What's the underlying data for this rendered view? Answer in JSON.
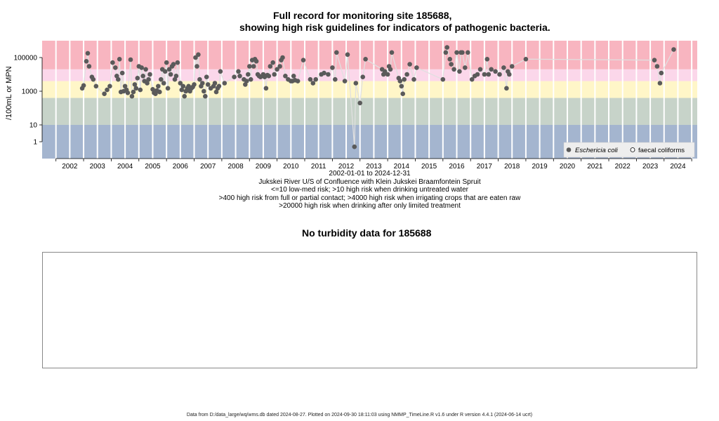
{
  "title_line1": "Full record for monitoring site 185688,",
  "title_line2": "showing high risk guidelines for indicators of pathogenic bacteria.",
  "y_axis_label": "/100mL or MPN",
  "caption": {
    "date_range": "2002-01-01 to 2024-12-31",
    "site_name": "Jukskei River U/S of Confluence with Klein Jukskei Braamfontein Spruit",
    "guideline_1": "<=10 low-med risk; >10 high risk when drinking untreated water",
    "guideline_2": ">400 high risk from full or partial contact; >4000 high risk when irrigating crops that are eaten raw",
    "guideline_3": ">20000 high risk when drinking after only limited treatment"
  },
  "legend": {
    "ecoli": "Eschericia coli",
    "faecal": "faecal coliforms"
  },
  "turbidity_title": "No turbidity data for 185688",
  "footer": "Data from D:/data_large/wq/wms.db dated 2024-08-27. Plotted on 2024-09-30 18:11:03 using NMMP_TimeLine.R v1.6 under R version 4.4.1 (2024-06-14 ucrt)",
  "colors": {
    "band_red": "#f8b5c0",
    "band_pink": "#fbd7ea",
    "band_yellow": "#fff6c8",
    "band_green": "#c7d3c9",
    "band_blue": "#a4b5cf",
    "points": "#5a5a5a",
    "line": "#e0e0e0"
  },
  "chart_data": {
    "type": "scatter",
    "y_scale": "log10",
    "ylim": [
      0.1,
      1000000
    ],
    "ytick_labels": [
      "1",
      "10",
      "1000",
      "100000"
    ],
    "ytick_values": [
      1,
      10,
      1000,
      100000
    ],
    "xlim": [
      2001.5,
      2025.2
    ],
    "xtick_labels": [
      "2002",
      "2003",
      "2004",
      "2005",
      "2006",
      "2007",
      "2008",
      "2009",
      "2010",
      "2011",
      "2012",
      "2013",
      "2014",
      "2015",
      "2016",
      "2017",
      "2018",
      "2019",
      "2020",
      "2021",
      "2022",
      "2023",
      "2024"
    ],
    "risk_bands": [
      {
        "from": 0.1,
        "to": 10
      },
      {
        "from": 10,
        "to": 400
      },
      {
        "from": 400,
        "to": 4000
      },
      {
        "from": 4000,
        "to": 20000
      },
      {
        "from": 20000,
        "to": 1000000
      }
    ],
    "legend_position": "bottom-right",
    "series": [
      {
        "name": "Eschericia coli",
        "marker": "filled-circle",
        "points": [
          [
            2002.95,
            1500
          ],
          [
            2003.0,
            2200
          ],
          [
            2003.1,
            60000
          ],
          [
            2003.15,
            180000
          ],
          [
            2003.2,
            30000
          ],
          [
            2003.3,
            7000
          ],
          [
            2003.35,
            5000
          ],
          [
            2003.45,
            2000
          ],
          [
            2003.75,
            700
          ],
          [
            2003.85,
            1200
          ],
          [
            2003.95,
            2000
          ],
          [
            2004.05,
            50000
          ],
          [
            2004.15,
            25000
          ],
          [
            2004.2,
            8000
          ],
          [
            2004.25,
            5000
          ],
          [
            2004.3,
            80000
          ],
          [
            2004.35,
            900
          ],
          [
            2004.4,
            12000
          ],
          [
            2004.45,
            1000
          ],
          [
            2004.5,
            2000
          ],
          [
            2004.55,
            1200
          ],
          [
            2004.6,
            800
          ],
          [
            2004.7,
            75000
          ],
          [
            2004.75,
            500
          ],
          [
            2004.8,
            900
          ],
          [
            2004.85,
            2500
          ],
          [
            2004.9,
            1500
          ],
          [
            2004.95,
            6000
          ],
          [
            2005.0,
            30000
          ],
          [
            2005.05,
            1200
          ],
          [
            2005.1,
            25000
          ],
          [
            2005.15,
            8000
          ],
          [
            2005.2,
            4000
          ],
          [
            2005.25,
            20000
          ],
          [
            2005.3,
            3000
          ],
          [
            2005.35,
            5000
          ],
          [
            2005.4,
            10000
          ],
          [
            2005.5,
            1300
          ],
          [
            2005.55,
            800
          ],
          [
            2005.6,
            700
          ],
          [
            2005.65,
            1100
          ],
          [
            2005.7,
            2000
          ],
          [
            2005.75,
            900
          ],
          [
            2005.8,
            5000
          ],
          [
            2005.85,
            20000
          ],
          [
            2005.9,
            3000
          ],
          [
            2005.95,
            15000
          ],
          [
            2006.0,
            50000
          ],
          [
            2006.05,
            1500
          ],
          [
            2006.1,
            20000
          ],
          [
            2006.15,
            10000
          ],
          [
            2006.2,
            30000
          ],
          [
            2006.25,
            40000
          ],
          [
            2006.3,
            5000
          ],
          [
            2006.35,
            8000
          ],
          [
            2006.4,
            50000
          ],
          [
            2006.5,
            3000
          ],
          [
            2006.55,
            1200
          ],
          [
            2006.6,
            2000
          ],
          [
            2006.65,
            500
          ],
          [
            2006.7,
            1000
          ],
          [
            2006.75,
            1500
          ],
          [
            2006.8,
            2000
          ],
          [
            2006.85,
            1000
          ],
          [
            2006.9,
            1500
          ],
          [
            2006.95,
            1800
          ],
          [
            2007.0,
            2500
          ],
          [
            2007.05,
            100000
          ],
          [
            2007.1,
            30000
          ],
          [
            2007.15,
            150000
          ],
          [
            2007.2,
            5000
          ],
          [
            2007.25,
            2000
          ],
          [
            2007.3,
            3000
          ],
          [
            2007.35,
            1000
          ],
          [
            2007.4,
            500
          ],
          [
            2007.45,
            7000
          ],
          [
            2007.5,
            2500
          ],
          [
            2007.6,
            1500
          ],
          [
            2007.7,
            2000
          ],
          [
            2007.75,
            3000
          ],
          [
            2007.8,
            900
          ],
          [
            2007.85,
            1500
          ],
          [
            2007.9,
            2000
          ],
          [
            2007.95,
            15000
          ],
          [
            2008.1,
            3000
          ],
          [
            2008.45,
            7000
          ],
          [
            2008.6,
            15000
          ],
          [
            2008.65,
            8000
          ],
          [
            2008.8,
            5000
          ],
          [
            2008.85,
            2500
          ],
          [
            2008.9,
            4000
          ],
          [
            2008.95,
            10000
          ],
          [
            2009.0,
            30000
          ],
          [
            2009.05,
            5000
          ],
          [
            2009.1,
            70000
          ],
          [
            2009.15,
            30000
          ],
          [
            2009.2,
            80000
          ],
          [
            2009.25,
            60000
          ],
          [
            2009.3,
            10000
          ],
          [
            2009.35,
            8000
          ],
          [
            2009.4,
            7000
          ],
          [
            2009.5,
            10000
          ],
          [
            2009.55,
            7000
          ],
          [
            2009.6,
            1500
          ],
          [
            2009.65,
            9000
          ],
          [
            2009.7,
            8000
          ],
          [
            2009.75,
            30000
          ],
          [
            2009.85,
            50000
          ],
          [
            2009.9,
            10000
          ],
          [
            2010.0,
            20000
          ],
          [
            2010.1,
            30000
          ],
          [
            2010.15,
            70000
          ],
          [
            2010.2,
            100000
          ],
          [
            2010.3,
            8000
          ],
          [
            2010.4,
            5000
          ],
          [
            2010.5,
            4000
          ],
          [
            2010.55,
            4000
          ],
          [
            2010.6,
            8000
          ],
          [
            2010.65,
            4500
          ],
          [
            2010.75,
            4000
          ],
          [
            2010.95,
            70000
          ],
          [
            2011.2,
            5000
          ],
          [
            2011.3,
            3000
          ],
          [
            2011.4,
            5000
          ],
          [
            2011.6,
            10000
          ],
          [
            2011.7,
            12000
          ],
          [
            2011.85,
            10000
          ],
          [
            2012.0,
            25000
          ],
          [
            2012.1,
            5000
          ],
          [
            2012.15,
            200000
          ],
          [
            2012.45,
            4000
          ],
          [
            2012.55,
            150000
          ],
          [
            2012.8,
            0.5
          ],
          [
            2012.85,
            3000
          ],
          [
            2013.0,
            200
          ],
          [
            2013.1,
            7000
          ],
          [
            2013.2,
            80000
          ],
          [
            2013.8,
            20000
          ],
          [
            2013.85,
            10000
          ],
          [
            2013.9,
            15000
          ],
          [
            2014.0,
            10000
          ],
          [
            2014.05,
            30000
          ],
          [
            2014.1,
            20000
          ],
          [
            2014.15,
            200000
          ],
          [
            2014.4,
            6000
          ],
          [
            2014.45,
            4000
          ],
          [
            2014.5,
            2000
          ],
          [
            2014.55,
            700
          ],
          [
            2014.6,
            5000
          ],
          [
            2014.7,
            10000
          ],
          [
            2014.8,
            40000
          ],
          [
            2014.95,
            5000
          ],
          [
            2015.05,
            25000
          ],
          [
            2016.0,
            5000
          ],
          [
            2016.1,
            200000
          ],
          [
            2016.15,
            400000
          ],
          [
            2016.25,
            80000
          ],
          [
            2016.3,
            40000
          ],
          [
            2016.4,
            20000
          ],
          [
            2016.5,
            200000
          ],
          [
            2016.6,
            15000
          ],
          [
            2016.65,
            200000
          ],
          [
            2016.7,
            200000
          ],
          [
            2016.8,
            25000
          ],
          [
            2016.9,
            200000
          ],
          [
            2017.05,
            5000
          ],
          [
            2017.15,
            8000
          ],
          [
            2017.25,
            10000
          ],
          [
            2017.35,
            20000
          ],
          [
            2017.5,
            10000
          ],
          [
            2017.6,
            80000
          ],
          [
            2017.65,
            10000
          ],
          [
            2017.75,
            20000
          ],
          [
            2017.9,
            15000
          ],
          [
            2018.05,
            10000
          ],
          [
            2018.2,
            25000
          ],
          [
            2018.3,
            1500
          ],
          [
            2018.35,
            15000
          ],
          [
            2018.4,
            10000
          ],
          [
            2018.5,
            30000
          ],
          [
            2019.0,
            80000
          ],
          [
            2023.65,
            70000
          ],
          [
            2023.75,
            30000
          ],
          [
            2023.85,
            3000
          ],
          [
            2023.9,
            12000
          ],
          [
            2024.35,
            300000
          ]
        ]
      },
      {
        "name": "faecal coliforms",
        "marker": "open-circle",
        "points": []
      }
    ]
  }
}
